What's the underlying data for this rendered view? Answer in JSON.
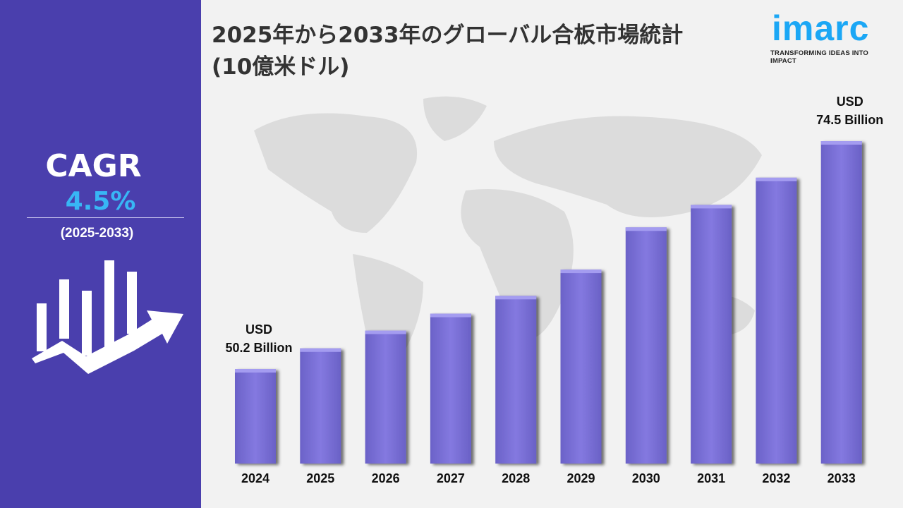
{
  "title_line1": "2025年から2033年のグローバル合板市場統計",
  "title_line2": "(10億米ドル)",
  "logo": {
    "word": "imarc",
    "tagline": "TRANSFORMING IDEAS INTO IMPACT",
    "color": "#1ba7f5"
  },
  "cagr": {
    "label": "CAGR",
    "value": "4.5%",
    "range": "(2025-2033)",
    "icon": "growth-chart-arrow-icon"
  },
  "colors": {
    "panel": "#4a3fad",
    "bar": "#7b72d6",
    "accent": "#38b6f5"
  },
  "chart_data": {
    "type": "bar",
    "categories": [
      "2024",
      "2025",
      "2026",
      "2027",
      "2028",
      "2029",
      "2030",
      "2031",
      "2032",
      "2033"
    ],
    "values": [
      50.2,
      52.4,
      54.3,
      56.1,
      58.0,
      60.8,
      65.3,
      67.7,
      70.6,
      74.5
    ],
    "annotations": [
      {
        "category": "2024",
        "line1": "USD",
        "line2": "50.2 Billion"
      },
      {
        "category": "2033",
        "line1": "USD",
        "line2": "74.5 Billion"
      }
    ],
    "grid": false,
    "background": "world-map"
  }
}
